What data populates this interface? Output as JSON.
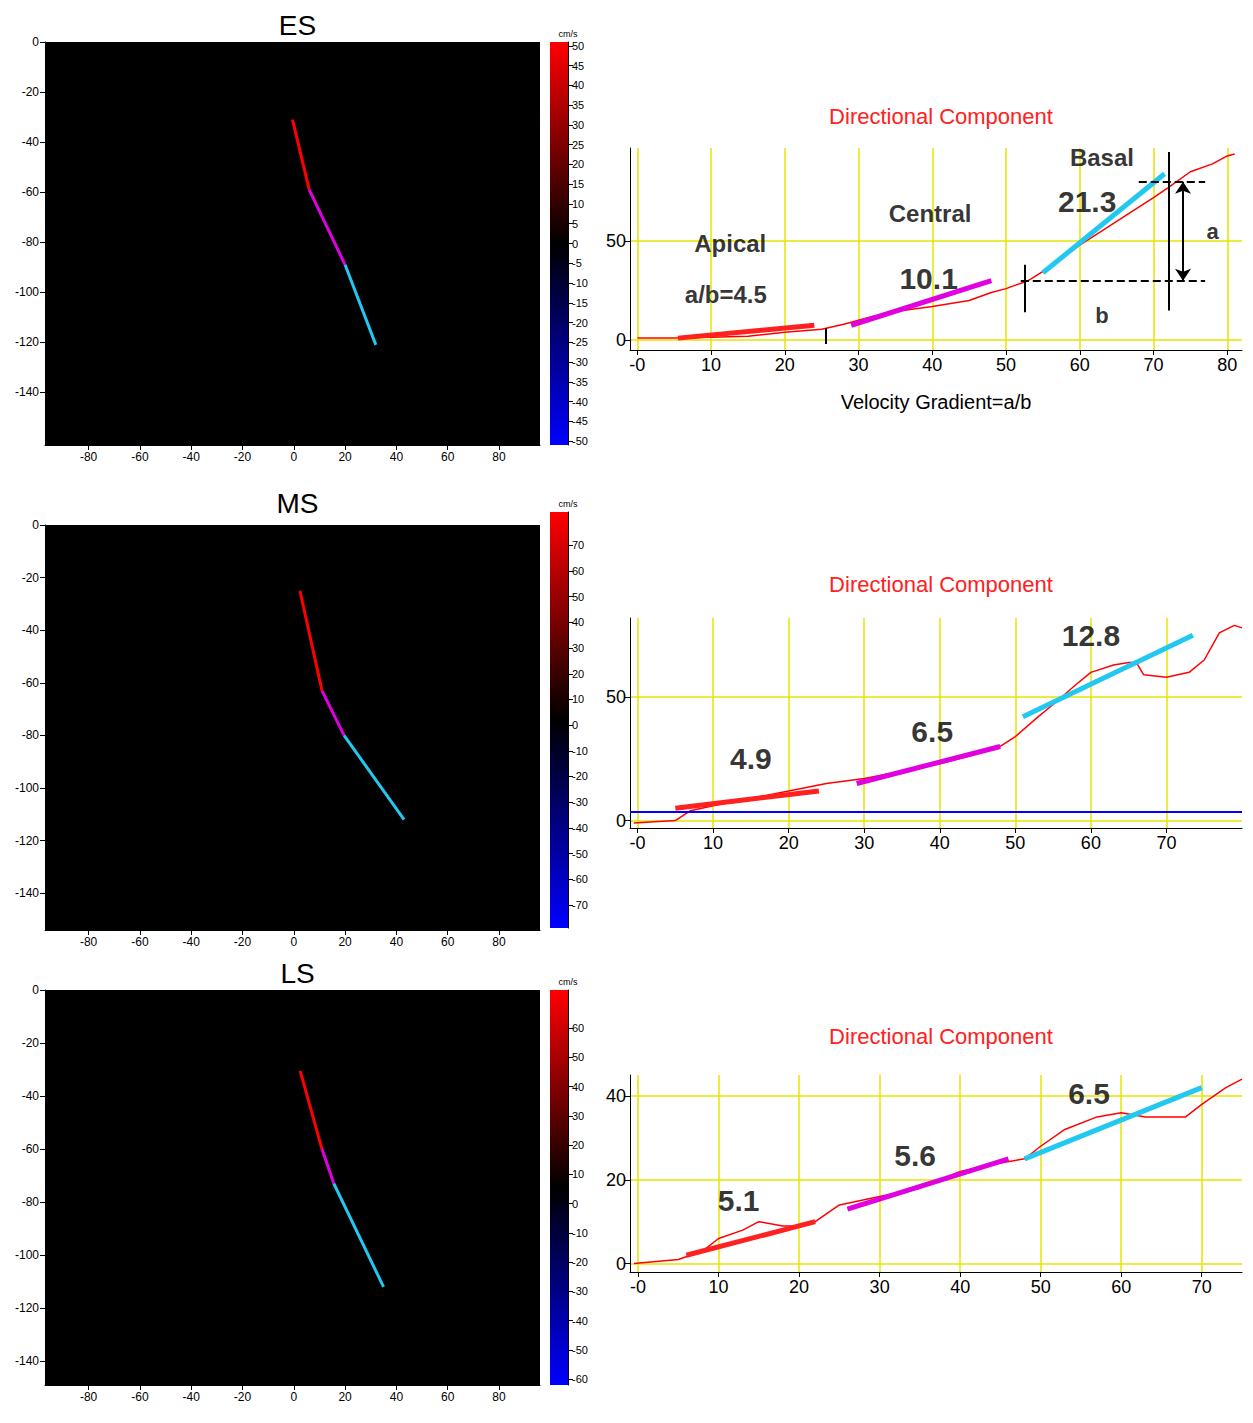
{
  "chart_data": [
    {
      "type": "image",
      "title": "ES",
      "xlim": [
        -97,
        96
      ],
      "xticks": [
        -80,
        -60,
        -40,
        -20,
        0,
        20,
        40,
        60,
        80
      ],
      "ylim": [
        -161,
        0
      ],
      "yticks": [
        0,
        -20,
        -40,
        -60,
        -80,
        -100,
        -120,
        -140
      ],
      "paths": [
        {
          "color": "#ff0000",
          "x": [
            -0.5,
            6
          ],
          "y": [
            -31,
            -59
          ]
        },
        {
          "color": "#e000e0",
          "x": [
            6,
            20
          ],
          "y": [
            -59,
            -89
          ]
        },
        {
          "color": "#22c8f0",
          "x": [
            20,
            32
          ],
          "y": [
            -89,
            -121
          ]
        }
      ],
      "colorbar": {
        "label": "cm/s",
        "range": [
          -51,
          51
        ],
        "ticks": [
          50,
          45,
          40,
          35,
          30,
          25,
          20,
          15,
          10,
          5,
          0,
          -5,
          -10,
          -15,
          -20,
          -25,
          -30,
          -35,
          -40,
          -45,
          -50
        ],
        "colors": [
          "#ff0000",
          "#000000",
          "#0000ff"
        ]
      }
    },
    {
      "type": "line",
      "title": "Directional Component",
      "xlabel": "Velocity Gradient=a/b",
      "color": "#ff0000",
      "x": [
        0,
        5,
        10,
        15,
        20,
        25,
        28,
        32,
        36,
        40,
        45,
        48,
        50,
        53,
        56,
        60,
        65,
        70,
        72,
        75,
        78,
        80,
        81
      ],
      "values": [
        1,
        1,
        1.5,
        2,
        4,
        5.5,
        8,
        12,
        15,
        17,
        20,
        24,
        26,
        30,
        37,
        48,
        60,
        72,
        77,
        85,
        89,
        93,
        94
      ],
      "xlim": [
        -1,
        82
      ],
      "xticks": [
        {
          "value": 0,
          "label": "-0"
        },
        10,
        20,
        30,
        40,
        50,
        60,
        70,
        80
      ],
      "ylim": [
        -5,
        97
      ],
      "yticks": [
        0,
        50
      ],
      "grid": true,
      "fits": [
        {
          "color": "#ff2020",
          "x": [
            5.5,
            24
          ],
          "y": [
            1,
            7.5
          ]
        },
        {
          "color": "#e000e0",
          "x": [
            29,
            48
          ],
          "y": [
            7.5,
            30
          ]
        },
        {
          "color": "#22c8f0",
          "x": [
            55,
            71.5
          ],
          "y": [
            34,
            84
          ]
        }
      ],
      "annotations": [
        {
          "text": "Apical",
          "x": 12.6,
          "y": 49
        },
        {
          "text": "a/b=4.5",
          "x": 12,
          "y": 23
        },
        {
          "text": "Central",
          "x": 39.7,
          "y": 64
        },
        {
          "text": "10.1",
          "x": 39.5,
          "y": 31
        },
        {
          "text": "Basal",
          "x": 63,
          "y": 92
        },
        {
          "text": "21.3",
          "x": 61,
          "y": 70
        },
        {
          "text": "a",
          "x": 78,
          "y": 55
        },
        {
          "text": "b",
          "x": 63,
          "y": 12.5
        }
      ],
      "guides": [
        {
          "color": "#000000",
          "line_style": "solid",
          "x": [
            25.5,
            25.5
          ],
          "y": [
            -2,
            6
          ]
        },
        {
          "color": "#000000",
          "line_style": "solid",
          "x": [
            52.5,
            52.5
          ],
          "y": [
            14,
            38
          ]
        },
        {
          "color": "#000000",
          "line_style": "solid",
          "x": [
            72,
            72
          ],
          "y": [
            15,
            95
          ]
        },
        {
          "color": "#000000",
          "line_style": "dashed",
          "x": [
            68,
            77
          ],
          "y": [
            80,
            80
          ]
        },
        {
          "color": "#000000",
          "line_style": "dashed",
          "x": [
            52,
            77
          ],
          "y": [
            30,
            30
          ]
        },
        {
          "color": "#000000",
          "line_style": "solid",
          "marker": "arrow",
          "x": [
            74,
            74
          ],
          "y": [
            30,
            80
          ]
        }
      ]
    },
    {
      "type": "image",
      "title": "MS",
      "xlim": [
        -97,
        96
      ],
      "xticks": [
        -80,
        -60,
        -40,
        -20,
        0,
        20,
        40,
        60,
        80
      ],
      "ylim": [
        -154,
        0
      ],
      "yticks": [
        0,
        -20,
        -40,
        -60,
        -80,
        -100,
        -120,
        -140
      ],
      "paths": [
        {
          "color": "#ff0000",
          "x": [
            2.4,
            11
          ],
          "y": [
            -25,
            -63
          ]
        },
        {
          "color": "#e000e0",
          "x": [
            11,
            19.6
          ],
          "y": [
            -63,
            -80
          ]
        },
        {
          "color": "#22c8f0",
          "x": [
            19.6,
            43
          ],
          "y": [
            -80,
            -112
          ]
        }
      ],
      "colorbar": {
        "label": "cm/s",
        "range": [
          -79,
          83
        ],
        "ticks": [
          70,
          60,
          50,
          40,
          30,
          20,
          10,
          0,
          -10,
          -20,
          -30,
          -40,
          -50,
          -60,
          -70
        ],
        "colors": [
          "#ff0000",
          "#000000",
          "#0000ff"
        ]
      }
    },
    {
      "type": "line",
      "title": "Directional Component",
      "color": "#ff0000",
      "x": [
        -0.5,
        5,
        7,
        10,
        15,
        20,
        25,
        30,
        35,
        40,
        45,
        48,
        50,
        53,
        55,
        58,
        60,
        63,
        65,
        66,
        67,
        70,
        73,
        75,
        77,
        79,
        80
      ],
      "values": [
        -1,
        0,
        4,
        6,
        9,
        12,
        15,
        17,
        20,
        23,
        27,
        30,
        34,
        42,
        47,
        55,
        60,
        63,
        64,
        64,
        59,
        58,
        60,
        65,
        76,
        79,
        78
      ],
      "xlim": [
        -1,
        80
      ],
      "xticks": [
        {
          "value": 0,
          "label": "-0"
        },
        10,
        20,
        30,
        40,
        50,
        60,
        70
      ],
      "ylim": [
        -3,
        82
      ],
      "yticks": [
        0,
        50
      ],
      "grid": true,
      "fits": [
        {
          "color": "#ff2020",
          "x": [
            5,
            24
          ],
          "y": [
            5,
            12
          ]
        },
        {
          "color": "#e000e0",
          "x": [
            29,
            48
          ],
          "y": [
            15,
            30
          ]
        },
        {
          "color": "#22c8f0",
          "x": [
            51,
            73.5
          ],
          "y": [
            42,
            75
          ]
        }
      ],
      "annotations": [
        {
          "text": "4.9",
          "x": 15,
          "y": 25
        },
        {
          "text": "6.5",
          "x": 39,
          "y": 36
        },
        {
          "text": "12.8",
          "x": 60,
          "y": 75
        }
      ],
      "guides": [
        {
          "color": "#0000ff",
          "line_style": "solid",
          "x": [
            -1,
            80
          ],
          "y": [
            3.5,
            3.5
          ]
        }
      ]
    },
    {
      "type": "image",
      "title": "LS",
      "xlim": [
        -97,
        96
      ],
      "xticks": [
        -80,
        -60,
        -40,
        -20,
        0,
        20,
        40,
        60,
        80
      ],
      "ylim": [
        -149,
        0
      ],
      "yticks": [
        0,
        -20,
        -40,
        -60,
        -80,
        -100,
        -120,
        -140
      ],
      "paths": [
        {
          "color": "#ff0000",
          "x": [
            2.5,
            11
          ],
          "y": [
            -30.5,
            -60
          ]
        },
        {
          "color": "#e000e0",
          "x": [
            11,
            15.6
          ],
          "y": [
            -60,
            -73
          ]
        },
        {
          "color": "#22c8f0",
          "x": [
            15.6,
            35
          ],
          "y": [
            -73,
            -112
          ]
        }
      ],
      "colorbar": {
        "label": "cm/s",
        "range": [
          -62,
          73
        ],
        "ticks": [
          60,
          50,
          40,
          30,
          20,
          10,
          0,
          -10,
          -20,
          -30,
          -40,
          -50,
          -60
        ],
        "colors": [
          "#ff0000",
          "#000000",
          "#0000ff"
        ]
      }
    },
    {
      "type": "line",
      "title": "Directional Component",
      "color": "#ff0000",
      "x": [
        -0.5,
        5,
        8,
        10,
        13,
        15,
        18,
        20,
        22,
        25,
        30,
        35,
        40,
        45,
        48,
        50,
        53,
        57,
        60,
        63,
        68,
        70,
        73,
        75
      ],
      "values": [
        0,
        1,
        3,
        6,
        8,
        10,
        9,
        9,
        10,
        14,
        16,
        18,
        22,
        24,
        25,
        28,
        32,
        35,
        36,
        35,
        35,
        38,
        42,
        44
      ],
      "xlim": [
        -1,
        75
      ],
      "xticks": [
        {
          "value": 0,
          "label": "-0"
        },
        10,
        20,
        30,
        40,
        50,
        60,
        70
      ],
      "ylim": [
        -2,
        45
      ],
      "yticks": [
        0,
        20,
        40
      ],
      "grid": true,
      "fits": [
        {
          "color": "#ff2020",
          "x": [
            6,
            22
          ],
          "y": [
            2,
            10
          ]
        },
        {
          "color": "#e000e0",
          "x": [
            26,
            46
          ],
          "y": [
            13,
            25
          ]
        },
        {
          "color": "#22c8f0",
          "x": [
            48,
            70
          ],
          "y": [
            25,
            42
          ]
        }
      ],
      "annotations": [
        {
          "text": "5.1",
          "x": 12.5,
          "y": 15
        },
        {
          "text": "5.6",
          "x": 34.4,
          "y": 25.7
        },
        {
          "text": "6.5",
          "x": 56,
          "y": 40.5
        }
      ],
      "guides": []
    }
  ]
}
